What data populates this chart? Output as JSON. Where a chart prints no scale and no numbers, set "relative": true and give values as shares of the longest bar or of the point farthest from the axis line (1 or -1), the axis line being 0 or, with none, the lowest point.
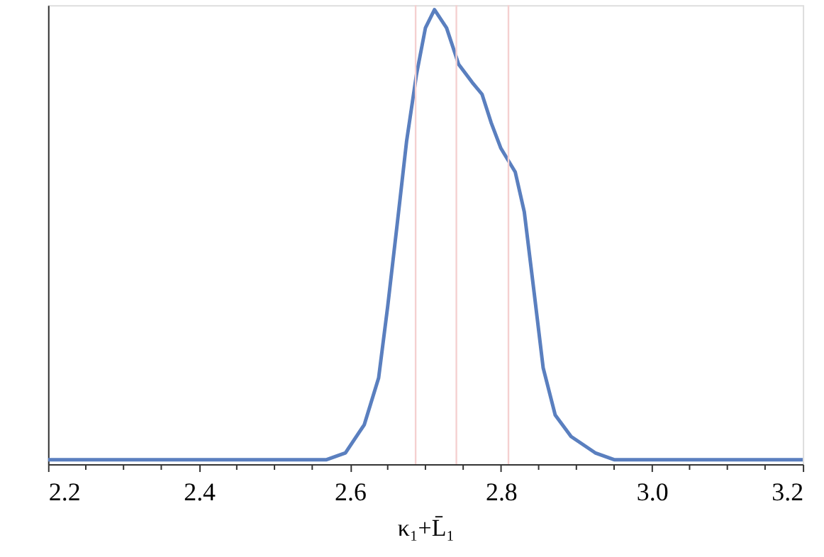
{
  "chart_data": {
    "type": "line",
    "relative": true,
    "xlabel": "κ₁+L̄₁",
    "x": [
      2.2,
      2.513,
      2.569,
      2.594,
      2.619,
      2.638,
      2.65,
      2.663,
      2.675,
      2.688,
      2.7,
      2.712,
      2.728,
      2.744,
      2.762,
      2.775,
      2.787,
      2.8,
      2.819,
      2.831,
      2.844,
      2.856,
      2.872,
      2.893,
      2.925,
      2.95,
      3.2
    ],
    "series": [
      {
        "color": "#5a7fbf",
        "values": [
          0.01,
          0.01,
          0.01,
          0.025,
          0.087,
          0.19,
          0.347,
          0.534,
          0.71,
          0.856,
          0.96,
          1.0,
          0.96,
          0.88,
          0.84,
          0.814,
          0.752,
          0.695,
          0.643,
          0.555,
          0.378,
          0.212,
          0.108,
          0.061,
          0.025,
          0.01,
          0.01
        ]
      }
    ],
    "xlim": [
      2.2,
      3.2
    ],
    "xticks": [
      2.2,
      {
        "value": 2.25,
        "label": null
      },
      {
        "value": 2.3,
        "label": null
      },
      {
        "value": 2.35,
        "label": null
      },
      2.4,
      {
        "value": 2.45,
        "label": null
      },
      {
        "value": 2.5,
        "label": null
      },
      {
        "value": 2.55,
        "label": null
      },
      2.6,
      {
        "value": 2.65,
        "label": null
      },
      {
        "value": 2.7,
        "label": null
      },
      {
        "value": 2.75,
        "label": null
      },
      2.8,
      {
        "value": 2.85,
        "label": null
      },
      {
        "value": 2.9,
        "label": null
      },
      {
        "value": 2.95,
        "label": null
      },
      {
        "value": 3.0,
        "label": "3.0"
      },
      {
        "value": 3.05,
        "label": null
      },
      {
        "value": 3.1,
        "label": null
      },
      {
        "value": 3.15,
        "label": null
      },
      3.2
    ],
    "ref_lines": [
      {
        "axis": "x",
        "value": 2.687,
        "color": "#f5d0d0"
      },
      {
        "axis": "x",
        "value": 2.741,
        "color": "#f5d0d0"
      },
      {
        "axis": "x",
        "value": 2.81,
        "color": "#f5d0d0"
      }
    ],
    "grid": false,
    "marker": "none",
    "line_style": "solid"
  }
}
